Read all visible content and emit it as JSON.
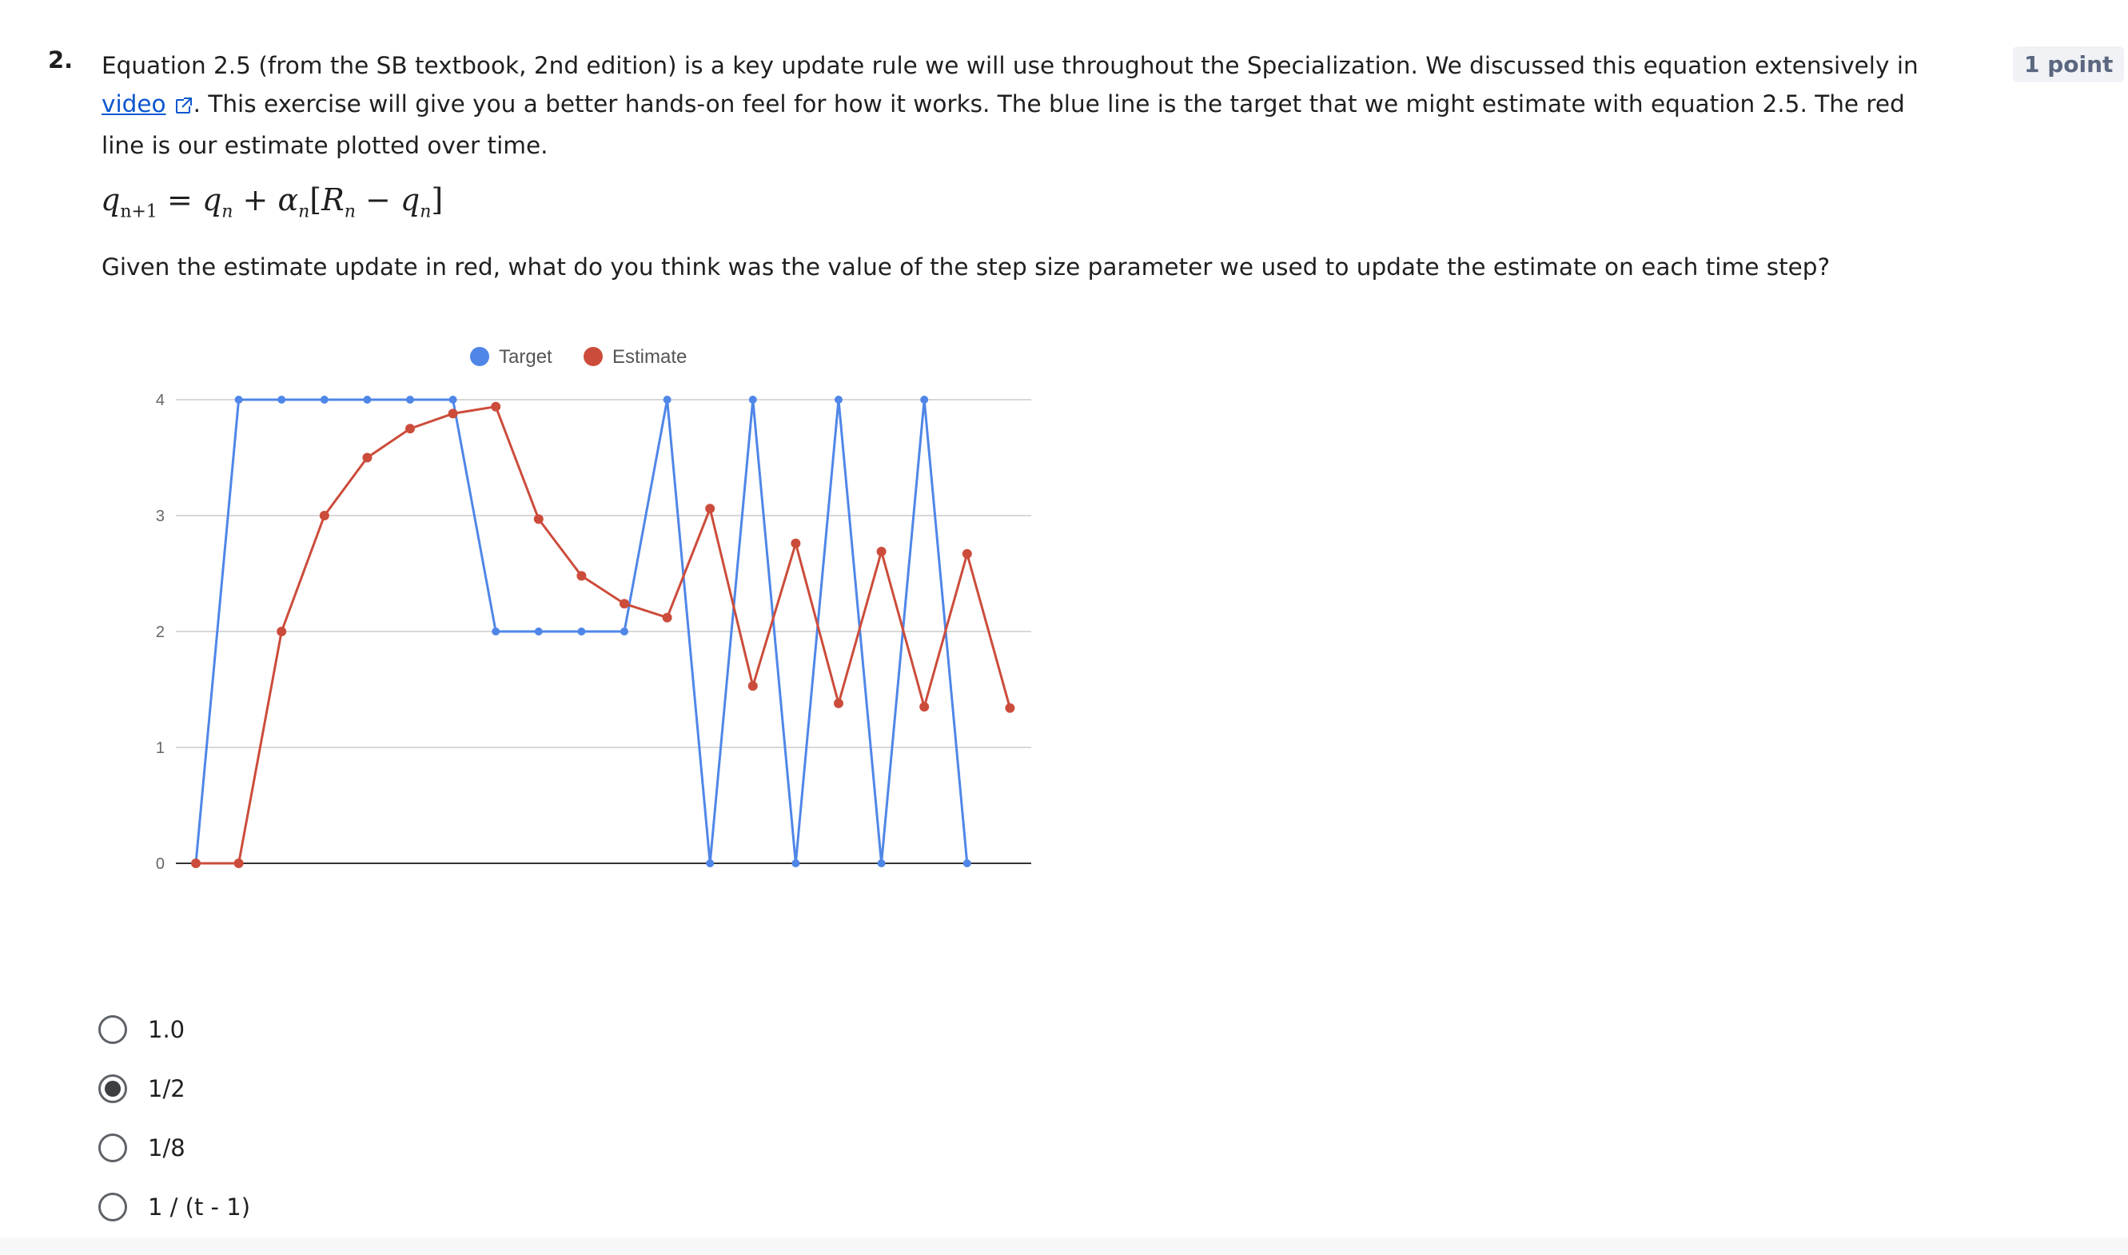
{
  "question": {
    "number": "2.",
    "points": "1 point",
    "intro_before_link": "Equation 2.5 (from the SB textbook, 2nd edition) is a key update rule we will use throughout the Specialization. We discussed this equation extensively in ",
    "link_text": "video",
    "intro_after_link": ". This exercise will give you a better hands-on feel for how it works. The blue line is the target that we might estimate with equation 2.5. The red line is our estimate plotted over time.",
    "equation": {
      "lhs_base": "q",
      "lhs_sub": "n+1",
      "eq": " = ",
      "q": "q",
      "n": "n",
      "plus": " + ",
      "alpha": "α",
      "lbracket": "[",
      "R": "R",
      "minus": " − ",
      "rbracket": "]"
    },
    "prompt": "Given the estimate update in red, what do you think was the value of the step size parameter we used to update the estimate on each time step?"
  },
  "options": [
    {
      "label": "1.0",
      "selected": false
    },
    {
      "label": "1/2",
      "selected": true
    },
    {
      "label": "1/8",
      "selected": false
    },
    {
      "label": "1 / (t - 1)",
      "selected": false
    }
  ],
  "icons": {
    "external": "external-link-icon"
  },
  "chart_data": {
    "type": "line",
    "x": [
      0,
      1,
      2,
      3,
      4,
      5,
      6,
      7,
      8,
      9,
      10,
      11,
      12,
      13,
      14,
      15,
      16,
      17,
      18,
      19
    ],
    "series": [
      {
        "name": "Target",
        "color": "#4f86e8",
        "values": [
          0,
          4,
          4,
          4,
          4,
          4,
          4,
          2,
          2,
          2,
          2,
          4,
          0,
          4,
          0,
          4,
          0,
          4,
          0,
          null
        ]
      },
      {
        "name": "Estimate",
        "color": "#cc4c3b",
        "values": [
          0,
          0,
          2,
          3,
          3.5,
          3.75,
          3.88,
          3.94,
          2.97,
          2.48,
          2.24,
          2.12,
          3.06,
          1.53,
          2.76,
          1.38,
          2.69,
          1.35,
          2.67,
          1.34
        ]
      }
    ],
    "yticks": [
      0,
      1,
      2,
      3,
      4
    ],
    "ylim": [
      0,
      4
    ],
    "xlabel": "",
    "ylabel": "",
    "legend": "top",
    "grid": true
  }
}
